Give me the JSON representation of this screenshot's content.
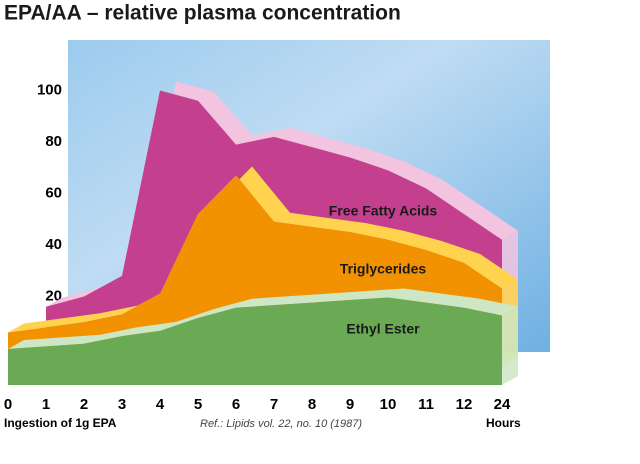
{
  "chart_data": {
    "type": "area3d",
    "title": "EPA/AA – relative plasma concentration",
    "categories": [
      "0",
      "1",
      "2",
      "3",
      "4",
      "5",
      "6",
      "7",
      "8",
      "9",
      "10",
      "11",
      "12",
      "24"
    ],
    "x_label_left": "Ingestion of 1g EPA",
    "x_label_right": "Hours",
    "reference": "Ref.: Lipids vol. 22, no. 10 (1987)",
    "ylim": [
      0,
      110
    ],
    "yticks": [
      20,
      40,
      60,
      80,
      100
    ],
    "series": [
      {
        "name": "Free Fatty Acids",
        "color": "#c4408e",
        "ridge": "#f2c4e0",
        "values": [
          null,
          16,
          20,
          28,
          100,
          96,
          79,
          82,
          78,
          74,
          69,
          62,
          52,
          42
        ]
      },
      {
        "name": "Triglycerides",
        "color": "#f39200",
        "ridge": "#ffd34d",
        "values": [
          13,
          15,
          17,
          20,
          28,
          59,
          74,
          56,
          54,
          52,
          49,
          45,
          40,
          30
        ]
      },
      {
        "name": "Ethyl Ester",
        "color": "#6aaa55",
        "ridge": "#cde6c4",
        "values": [
          14,
          15,
          16,
          19,
          21,
          26,
          30,
          31,
          32,
          33,
          34,
          32,
          30,
          27
        ]
      }
    ]
  }
}
